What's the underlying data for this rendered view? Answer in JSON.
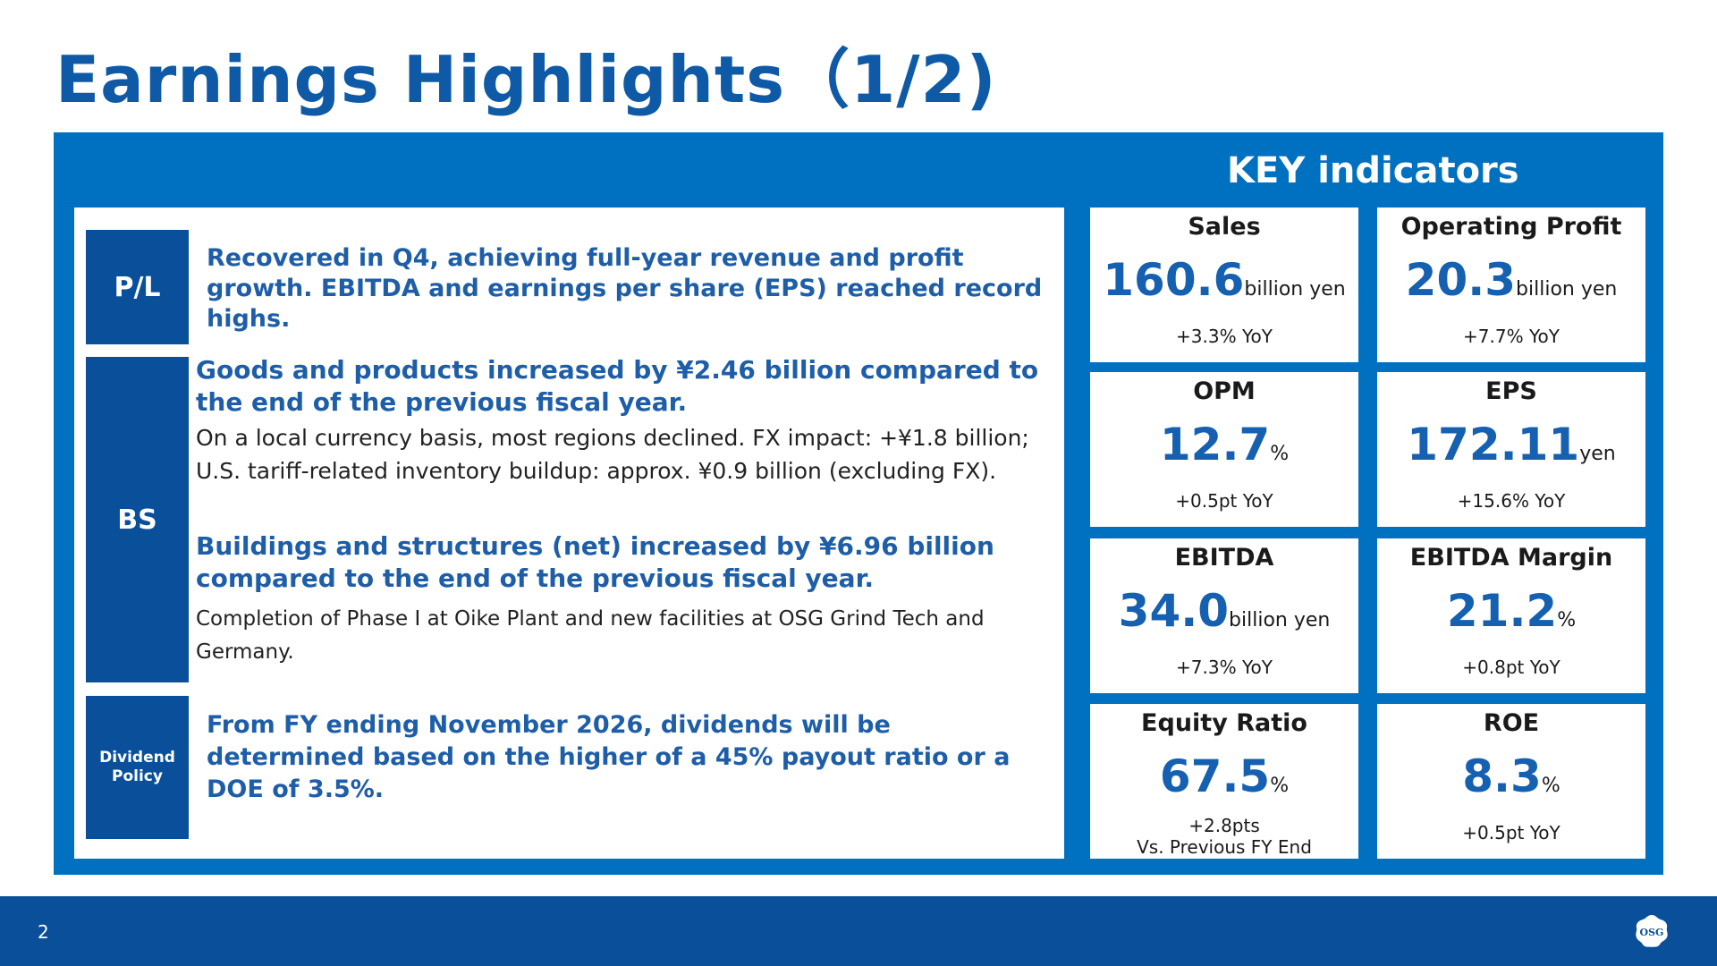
{
  "title": "Earnings Highlights（1/2)",
  "key_heading": "KEY indicators",
  "sections": {
    "pl": {
      "label": "P/L",
      "headline": "Recovered in Q4, achieving full-year revenue and profit growth. EBITDA and earnings per share (EPS) reached record highs."
    },
    "bs": {
      "label": "BS",
      "headline1": "Goods and products increased by ¥2.46 billion compared to the end of the previous fiscal year.",
      "body1": "On a local currency basis, most regions declined. FX impact: +¥1.8 billion; U.S. tariff-related inventory buildup: approx. ¥0.9 billion (excluding FX).",
      "headline2": "Buildings and structures (net) increased by ¥6.96 billion compared to the end of the previous fiscal year.",
      "body2": "Completion of Phase I at Oike Plant and new facilities at OSG Grind Tech and Germany."
    },
    "dividend": {
      "label_line1": "Dividend",
      "label_line2": "Policy",
      "headline": "From FY ending November 2026, dividends will be determined based on the higher of a 45% payout ratio or a DOE of 3.5%."
    }
  },
  "indicators": {
    "sales": {
      "title": "Sales",
      "value": "160.6",
      "unit": "billion yen",
      "change": "+3.3% YoY"
    },
    "op_profit": {
      "title": "Operating Profit",
      "value": "20.3",
      "unit": "billion yen",
      "change": "+7.7% YoY"
    },
    "opm": {
      "title": "OPM",
      "value": "12.7",
      "unit": "%",
      "change": "+0.5pt YoY"
    },
    "eps": {
      "title": "EPS",
      "value": "172.11",
      "unit": "yen",
      "change": "+15.6% YoY"
    },
    "ebitda": {
      "title": "EBITDA",
      "value": "34.0",
      "unit": "billion yen",
      "change": "+7.3% YoY"
    },
    "ebitda_margin": {
      "title": "EBITDA Margin",
      "value": "21.2",
      "unit": "%",
      "change": "+0.8pt YoY"
    },
    "equity_ratio": {
      "title": "Equity Ratio",
      "value": "67.5",
      "unit": "%",
      "change_line1": "+2.8pts",
      "change_line2": "Vs. Previous FY End"
    },
    "roe": {
      "title": "ROE",
      "value": "8.3",
      "unit": "%",
      "change": "+0.5pt YoY"
    }
  },
  "footer": {
    "page_number": "2",
    "logo_text": "OSG"
  },
  "colors": {
    "brand_blue": "#0070c0",
    "dark_blue": "#0a4f9a",
    "title_blue": "#0f5aa6"
  }
}
